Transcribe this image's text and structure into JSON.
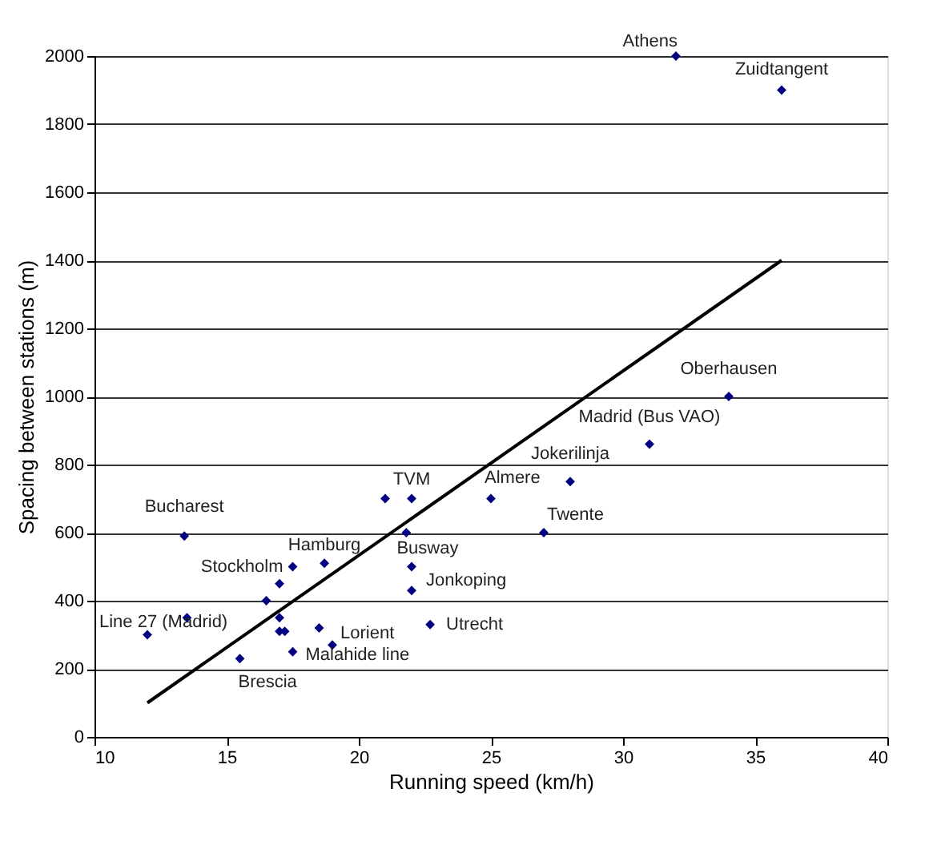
{
  "chart_data": {
    "type": "scatter",
    "xlabel": "Running speed (km/h)",
    "ylabel": "Spacing between stations (m)",
    "xlim": [
      10,
      40
    ],
    "xticks": [
      10,
      15,
      20,
      25,
      30,
      35,
      40
    ],
    "ylim": [
      0,
      2000
    ],
    "yticks": [
      0,
      200,
      400,
      600,
      800,
      1000,
      1200,
      1400,
      1600,
      1800,
      2000
    ],
    "grid": "y",
    "series": [
      {
        "marker": "diamond",
        "color": "#000080",
        "x": [
          12,
          13.5,
          13.4,
          15.5,
          16.5,
          17,
          17.5,
          18.7,
          17,
          17,
          17.2,
          18.5,
          19,
          17.5,
          21,
          22,
          21.8,
          22,
          22,
          22.7,
          25,
          27,
          28,
          31,
          34,
          32,
          36
        ],
        "values": [
          300,
          350,
          590,
          230,
          400,
          450,
          500,
          510,
          350,
          310,
          310,
          320,
          270,
          250,
          700,
          700,
          600,
          500,
          430,
          330,
          700,
          600,
          750,
          860,
          1000,
          2000,
          1900
        ]
      },
      {
        "type": "line",
        "marker": "none",
        "line_style": "solid",
        "color": "#000000",
        "x": [
          12,
          36
        ],
        "values": [
          100,
          1400
        ]
      }
    ],
    "annotations": [
      {
        "text": "Athens",
        "x": 32,
        "y": 2000
      },
      {
        "text": "Zuidtangent",
        "x": 36,
        "y": 1900
      },
      {
        "text": "Oberhausen",
        "x": 34,
        "y": 1000
      },
      {
        "text": "Madrid (Bus VAO)",
        "x": 31,
        "y": 860
      },
      {
        "text": "Jokerilinja",
        "x": 28,
        "y": 750
      },
      {
        "text": "Twente",
        "x": 27,
        "y": 600
      },
      {
        "text": "Almere",
        "x": 25,
        "y": 700
      },
      {
        "text": "TVM",
        "x": 22,
        "y": 700
      },
      {
        "text": "Busway",
        "x": 21.8,
        "y": 600
      },
      {
        "text": "Jonkoping",
        "x": 22,
        "y": 430
      },
      {
        "text": "Utrecht",
        "x": 22.7,
        "y": 330
      },
      {
        "text": "Lorient",
        "x": 19,
        "y": 270
      },
      {
        "text": "Malahide line",
        "x": 17.5,
        "y": 250
      },
      {
        "text": "Hamburg",
        "x": 18.7,
        "y": 510
      },
      {
        "text": "Stockholm",
        "x": 17.5,
        "y": 500
      },
      {
        "text": "Bucharest",
        "x": 13.4,
        "y": 590
      },
      {
        "text": "Line 27 (Madrid)",
        "x": 12,
        "y": 300
      },
      {
        "text": "Brescia",
        "x": 15.5,
        "y": 230
      }
    ]
  }
}
